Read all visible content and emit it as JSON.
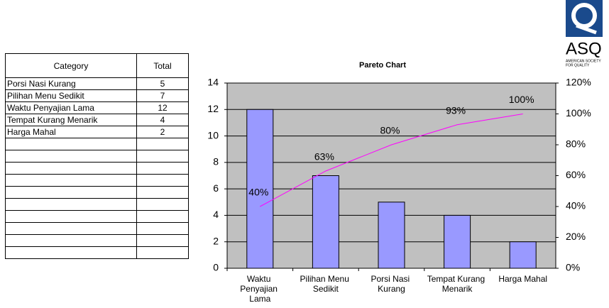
{
  "table": {
    "header": [
      "Category",
      "Total"
    ],
    "rows": [
      [
        "Porsi Nasi Kurang",
        5
      ],
      [
        "Pilihan Menu Sedikit",
        7
      ],
      [
        "Waktu Penyajian Lama",
        12
      ],
      [
        "Tempat Kurang Menarik",
        4
      ],
      [
        "Harga Mahal",
        2
      ]
    ]
  },
  "logo": {
    "text": "ASQ",
    "subtitle": [
      "AMERICAN SOCIETY",
      "FOR QUALITY"
    ]
  },
  "chart_data": {
    "type": "pareto",
    "title": "Pareto Chart",
    "categories": [
      "Waktu Penyajian Lama",
      "Pilihan Menu Sedikit",
      "Porsi Nasi Kurang",
      "Tempat Kurang Menarik",
      "Harga Mahal"
    ],
    "series": [
      {
        "type": "bar",
        "color": "#9999ff",
        "values": [
          12,
          7,
          5,
          4,
          2
        ]
      },
      {
        "type": "line",
        "axis": "y2",
        "color": "#ff00ff",
        "values": [
          40,
          63,
          80,
          93,
          100
        ],
        "value_labels": [
          "40%",
          "63%",
          "80%",
          "93%",
          "100%"
        ]
      }
    ],
    "ylim": [
      0,
      14
    ],
    "yticks": [
      0,
      2,
      4,
      6,
      8,
      10,
      12,
      14
    ],
    "y2lim": [
      0,
      120
    ],
    "y2ticks": [
      {
        "value": 0,
        "label": "0%"
      },
      {
        "value": 20,
        "label": "20%"
      },
      {
        "value": 40,
        "label": "40%"
      },
      {
        "value": 60,
        "label": "60%"
      },
      {
        "value": 80,
        "label": "80%"
      },
      {
        "value": 100,
        "label": "100%"
      },
      {
        "value": 120,
        "label": "120%"
      }
    ],
    "grid": true,
    "plot_background": "#c0c0c0"
  }
}
